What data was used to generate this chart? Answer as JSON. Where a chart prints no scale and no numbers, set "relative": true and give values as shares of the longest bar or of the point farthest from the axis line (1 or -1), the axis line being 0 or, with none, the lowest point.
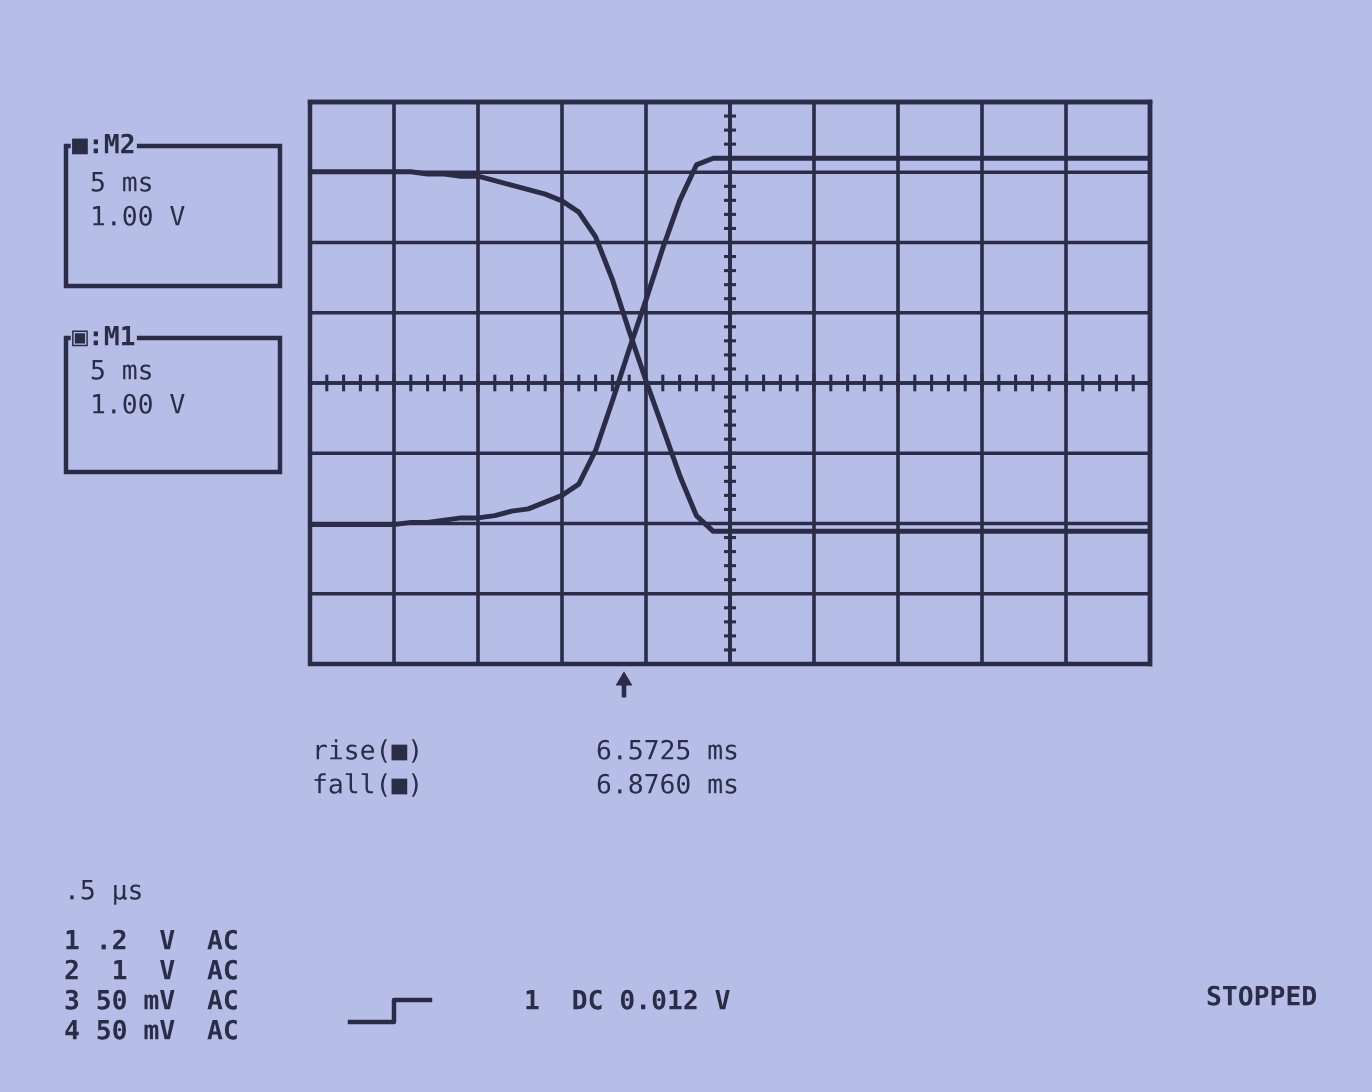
{
  "chart_data": {
    "type": "line",
    "relative": true,
    "grid": true,
    "categories": [
      null,
      null,
      null,
      null,
      null,
      null,
      null,
      null,
      null,
      null,
      null,
      null,
      null,
      null,
      null,
      null,
      null,
      null,
      null,
      null,
      null,
      null,
      null,
      null,
      null,
      null,
      null,
      null,
      null,
      null,
      null,
      null,
      null,
      null,
      null,
      null,
      null,
      null,
      null,
      null,
      null,
      null,
      null,
      null,
      null,
      null,
      null,
      null,
      null,
      null,
      null
    ],
    "series": [
      {
        "color": "#2a2c48",
        "values": [
          0.94,
          0.94,
          0.94,
          0.94,
          0.94,
          0.94,
          0.94,
          0.93,
          0.93,
          0.92,
          0.92,
          0.9,
          0.88,
          0.86,
          0.84,
          0.81,
          0.76,
          0.65,
          0.46,
          0.23,
          0.01,
          -0.2,
          -0.41,
          -0.59,
          -0.66,
          -0.66,
          -0.66,
          -0.66,
          -0.66,
          -0.66,
          -0.66,
          -0.66,
          -0.66,
          -0.66,
          -0.66,
          -0.66,
          -0.66,
          -0.66,
          -0.66,
          -0.66,
          -0.66,
          -0.66,
          -0.66,
          -0.66,
          -0.66,
          -0.66,
          -0.66,
          -0.66,
          -0.66,
          -0.66,
          -0.66
        ]
      },
      {
        "color": "#2a2c48",
        "values": [
          -0.63,
          -0.63,
          -0.63,
          -0.63,
          -0.63,
          -0.63,
          -0.62,
          -0.62,
          -0.61,
          -0.6,
          -0.6,
          -0.59,
          -0.57,
          -0.56,
          -0.53,
          -0.5,
          -0.45,
          -0.3,
          -0.08,
          0.15,
          0.37,
          0.6,
          0.81,
          0.97,
          1,
          1,
          1,
          1,
          1,
          1,
          1,
          1,
          1,
          1,
          1,
          1,
          1,
          1,
          1,
          1,
          1,
          1,
          1,
          1,
          1,
          1,
          1,
          1,
          1,
          1,
          1
        ]
      }
    ],
    "annotations": [
      "■:M2",
      "5 ms",
      "1.00 V",
      "▣:M1",
      "5 ms",
      "1.00 V",
      "rise(■)",
      "6.5725 ms",
      "fall(■)",
      "6.8760 ms",
      ".5 μs",
      "1 .2  V  AC",
      "2  1  V  AC",
      "3 50 mV  AC",
      "4 50 mV  AC",
      "1  DC 0.012 V",
      "STOPPED"
    ]
  }
}
